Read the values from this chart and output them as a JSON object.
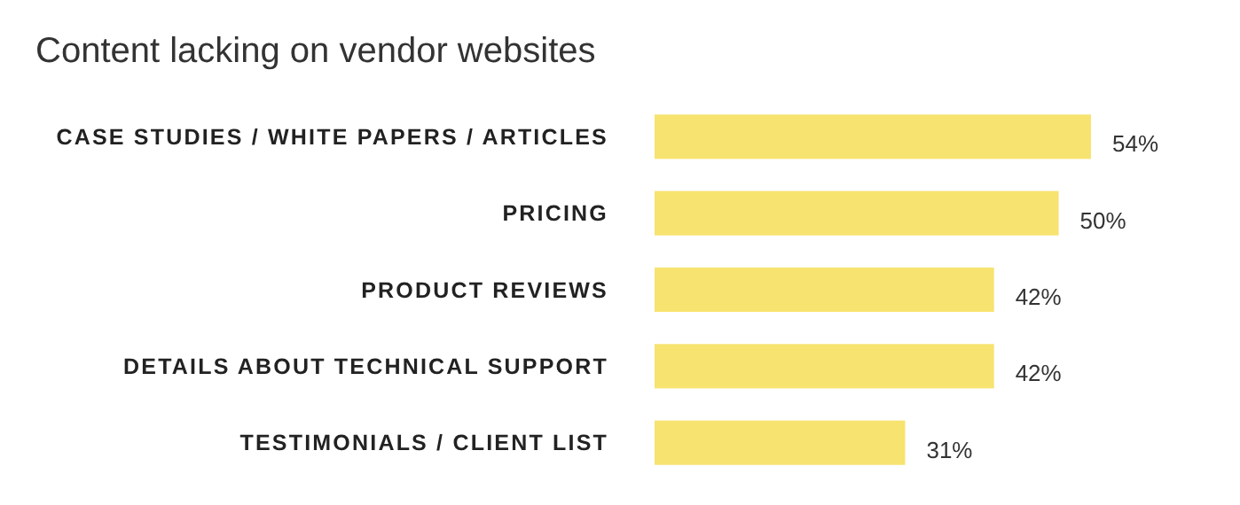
{
  "chart_data": {
    "type": "bar",
    "orientation": "horizontal",
    "title": "Content lacking on vendor websites",
    "categories": [
      "CASE STUDIES / WHITE PAPERS / ARTICLES",
      "PRICING",
      "PRODUCT REVIEWS",
      "DETAILS ABOUT TECHNICAL SUPPORT",
      "TESTIMONIALS / CLIENT LIST"
    ],
    "values": [
      54,
      50,
      42,
      42,
      31
    ],
    "value_labels": [
      "54%",
      "50%",
      "42%",
      "42%",
      "31%"
    ],
    "color": "#f7e36f"
  }
}
